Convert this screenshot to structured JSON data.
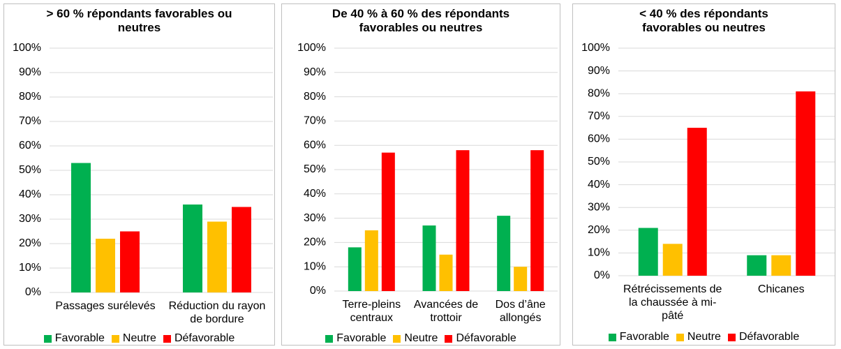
{
  "chart_data": [
    {
      "type": "bar",
      "title": "> 60 % répondants favorables ou neutres",
      "categories": [
        "Passages surélevés",
        "Réduction du rayon de bordure"
      ],
      "series": [
        {
          "name": "Favorable",
          "color": "#00b050",
          "values": [
            53,
            36
          ]
        },
        {
          "name": "Neutre",
          "color": "#ffc000",
          "values": [
            22,
            29
          ]
        },
        {
          "name": "Défavorable",
          "color": "#ff0000",
          "values": [
            25,
            35
          ]
        }
      ],
      "ylim": [
        0,
        100
      ],
      "yticks": [
        {
          "value": 0,
          "label": "0%"
        },
        {
          "value": 10,
          "label": "10%"
        },
        {
          "value": 20,
          "label": "20%"
        },
        {
          "value": 30,
          "label": "30%"
        },
        {
          "value": 40,
          "label": "40%"
        },
        {
          "value": 50,
          "label": "50%"
        },
        {
          "value": 60,
          "label": "60%"
        },
        {
          "value": 70,
          "label": "70%"
        },
        {
          "value": 80,
          "label": "80%"
        },
        {
          "value": 90,
          "label": "90%"
        },
        {
          "value": 100,
          "label": "100%"
        }
      ],
      "grid": true,
      "legend": "bottom"
    },
    {
      "type": "bar",
      "title": "De 40 % à 60 % des répondants favorables ou neutres",
      "categories": [
        "Terre-pleins centraux",
        "Avancées de trottoir",
        "Dos d’âne allongés"
      ],
      "series": [
        {
          "name": "Favorable",
          "color": "#00b050",
          "values": [
            18,
            27,
            31
          ]
        },
        {
          "name": "Neutre",
          "color": "#ffc000",
          "values": [
            25,
            15,
            10
          ]
        },
        {
          "name": "Défavorable",
          "color": "#ff0000",
          "values": [
            57,
            58,
            58
          ]
        }
      ],
      "ylim": [
        0,
        100
      ],
      "yticks": [
        {
          "value": 0,
          "label": "0%"
        },
        {
          "value": 10,
          "label": "10%"
        },
        {
          "value": 20,
          "label": "20%"
        },
        {
          "value": 30,
          "label": "30%"
        },
        {
          "value": 40,
          "label": "40%"
        },
        {
          "value": 50,
          "label": "50%"
        },
        {
          "value": 60,
          "label": "60%"
        },
        {
          "value": 70,
          "label": "70%"
        },
        {
          "value": 80,
          "label": "80%"
        },
        {
          "value": 90,
          "label": "90%"
        },
        {
          "value": 100,
          "label": "100%"
        }
      ],
      "grid": true,
      "legend": "bottom"
    },
    {
      "type": "bar",
      "title": "< 40 % des répondants favorables ou neutres",
      "categories": [
        "Rétrécissements de la chaussée à mi-pâté",
        "Chicanes"
      ],
      "series": [
        {
          "name": "Favorable",
          "color": "#00b050",
          "values": [
            21,
            9
          ]
        },
        {
          "name": "Neutre",
          "color": "#ffc000",
          "values": [
            14,
            9
          ]
        },
        {
          "name": "Défavorable",
          "color": "#ff0000",
          "values": [
            65,
            81
          ]
        }
      ],
      "ylim": [
        0,
        100
      ],
      "yticks": [
        {
          "value": 0,
          "label": "0%"
        },
        {
          "value": 10,
          "label": "10%"
        },
        {
          "value": 20,
          "label": "20%"
        },
        {
          "value": 30,
          "label": "30%"
        },
        {
          "value": 40,
          "label": "40%"
        },
        {
          "value": 50,
          "label": "50%"
        },
        {
          "value": 60,
          "label": "60%"
        },
        {
          "value": 70,
          "label": "70%"
        },
        {
          "value": 80,
          "label": "80%"
        },
        {
          "value": 90,
          "label": "90%"
        },
        {
          "value": 100,
          "label": "100%"
        }
      ],
      "grid": true,
      "legend": "bottom"
    }
  ]
}
